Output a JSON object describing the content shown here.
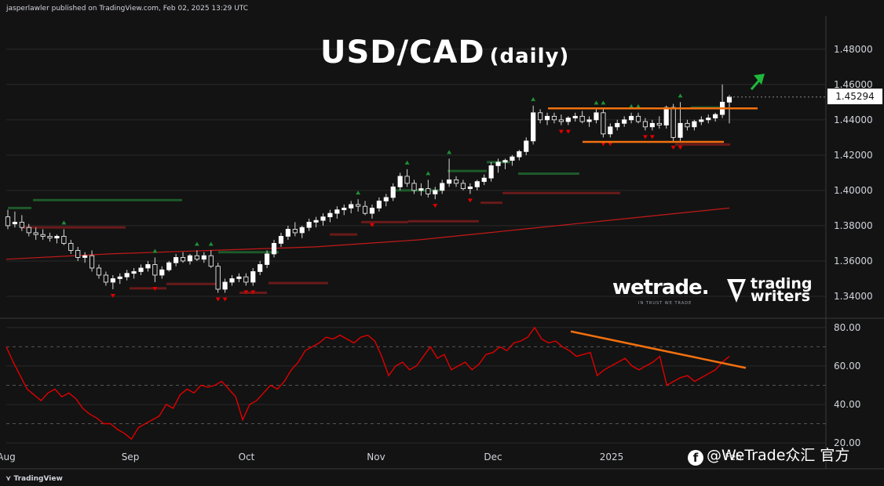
{
  "header": {
    "publisher_text": "jasperlawler published on TradingView.com, Feb 02, 2025 13:29 UTC"
  },
  "title": {
    "main": "USD/CAD",
    "sub": "(daily)"
  },
  "price_tag": "1.45294",
  "brands": {
    "wetrade": "wetrade.",
    "wetrade_tagline": "IN TRUST WE TRADE",
    "trading_writers_line1": "trading",
    "trading_writers_line2": "writers"
  },
  "footer": {
    "tradingview": "TradingView"
  },
  "watermark": {
    "icon": "facebook-like-icon",
    "text": "@WeTrade众汇 官方"
  },
  "colors": {
    "background": "#131313",
    "up_candle": "#ffffff",
    "down_candle": "#ffffff",
    "up_arrow": "#1f8f35",
    "down_arrow": "#e00000",
    "support_green": "#1d5a2a",
    "resistance_red": "#6a1a1a",
    "moving_average": "#c41919",
    "rsi_line": "#e00000",
    "trendline": "#f2700f",
    "grid": "#2a2a2a"
  },
  "chart_data": [
    {
      "type": "candlestick",
      "title": "USD/CAD",
      "subtitle": "(daily)",
      "y_ticks": [
        "1.48000",
        "1.46000",
        "1.44000",
        "1.42000",
        "1.40000",
        "1.38000",
        "1.36000",
        "1.34000"
      ],
      "ylim": [
        1.328,
        1.499
      ],
      "x_ticks": [
        "Aug",
        "Sep",
        "Oct",
        "Nov",
        "Dec",
        "2025",
        "Feb"
      ],
      "last_price": 1.45294,
      "candles": [
        [
          1.385,
          1.389,
          1.378,
          1.38
        ],
        [
          1.381,
          1.388,
          1.379,
          1.382
        ],
        [
          1.382,
          1.386,
          1.377,
          1.379
        ],
        [
          1.379,
          1.381,
          1.374,
          1.376
        ],
        [
          1.376,
          1.379,
          1.372,
          1.375
        ],
        [
          1.375,
          1.378,
          1.372,
          1.374
        ],
        [
          1.374,
          1.376,
          1.371,
          1.373
        ],
        [
          1.373,
          1.375,
          1.37,
          1.374
        ],
        [
          1.374,
          1.378,
          1.369,
          1.37
        ],
        [
          1.37,
          1.372,
          1.364,
          1.366
        ],
        [
          1.366,
          1.368,
          1.36,
          1.362
        ],
        [
          1.362,
          1.365,
          1.359,
          1.363
        ],
        [
          1.363,
          1.366,
          1.354,
          1.356
        ],
        [
          1.356,
          1.358,
          1.35,
          1.352
        ],
        [
          1.352,
          1.354,
          1.346,
          1.348
        ],
        [
          1.348,
          1.352,
          1.344,
          1.35
        ],
        [
          1.35,
          1.353,
          1.347,
          1.351
        ],
        [
          1.351,
          1.355,
          1.349,
          1.353
        ],
        [
          1.353,
          1.356,
          1.35,
          1.354
        ],
        [
          1.354,
          1.358,
          1.352,
          1.356
        ],
        [
          1.356,
          1.36,
          1.354,
          1.358
        ],
        [
          1.358,
          1.362,
          1.348,
          1.352
        ],
        [
          1.352,
          1.357,
          1.35,
          1.355
        ],
        [
          1.355,
          1.36,
          1.354,
          1.359
        ],
        [
          1.359,
          1.364,
          1.357,
          1.362
        ],
        [
          1.362,
          1.365,
          1.359,
          1.36
        ],
        [
          1.36,
          1.364,
          1.358,
          1.363
        ],
        [
          1.363,
          1.366,
          1.36,
          1.361
        ],
        [
          1.361,
          1.365,
          1.359,
          1.363
        ],
        [
          1.363,
          1.366,
          1.356,
          1.357
        ],
        [
          1.357,
          1.359,
          1.342,
          1.344
        ],
        [
          1.344,
          1.35,
          1.342,
          1.348
        ],
        [
          1.348,
          1.352,
          1.346,
          1.35
        ],
        [
          1.35,
          1.353,
          1.348,
          1.351
        ],
        [
          1.351,
          1.353,
          1.346,
          1.348
        ],
        [
          1.348,
          1.356,
          1.346,
          1.354
        ],
        [
          1.354,
          1.36,
          1.352,
          1.358
        ],
        [
          1.358,
          1.366,
          1.356,
          1.364
        ],
        [
          1.364,
          1.372,
          1.362,
          1.37
        ],
        [
          1.37,
          1.376,
          1.368,
          1.374
        ],
        [
          1.374,
          1.38,
          1.372,
          1.378
        ],
        [
          1.378,
          1.382,
          1.374,
          1.376
        ],
        [
          1.376,
          1.38,
          1.373,
          1.379
        ],
        [
          1.379,
          1.384,
          1.377,
          1.382
        ],
        [
          1.382,
          1.385,
          1.379,
          1.383
        ],
        [
          1.383,
          1.387,
          1.38,
          1.385
        ],
        [
          1.385,
          1.389,
          1.382,
          1.387
        ],
        [
          1.387,
          1.391,
          1.384,
          1.389
        ],
        [
          1.389,
          1.392,
          1.386,
          1.39
        ],
        [
          1.39,
          1.394,
          1.387,
          1.392
        ],
        [
          1.392,
          1.395,
          1.388,
          1.391
        ],
        [
          1.391,
          1.394,
          1.386,
          1.387
        ],
        [
          1.387,
          1.392,
          1.384,
          1.39
        ],
        [
          1.39,
          1.396,
          1.388,
          1.394
        ],
        [
          1.394,
          1.398,
          1.391,
          1.396
        ],
        [
          1.396,
          1.404,
          1.394,
          1.402
        ],
        [
          1.402,
          1.41,
          1.4,
          1.408
        ],
        [
          1.408,
          1.412,
          1.402,
          1.404
        ],
        [
          1.404,
          1.406,
          1.398,
          1.4
        ],
        [
          1.4,
          1.404,
          1.397,
          1.401
        ],
        [
          1.401,
          1.406,
          1.396,
          1.398
        ],
        [
          1.398,
          1.402,
          1.395,
          1.4
        ],
        [
          1.4,
          1.406,
          1.398,
          1.404
        ],
        [
          1.404,
          1.418,
          1.402,
          1.406
        ],
        [
          1.406,
          1.408,
          1.402,
          1.404
        ],
        [
          1.404,
          1.406,
          1.4,
          1.401
        ],
        [
          1.401,
          1.404,
          1.398,
          1.402
        ],
        [
          1.402,
          1.406,
          1.4,
          1.405
        ],
        [
          1.405,
          1.409,
          1.403,
          1.407
        ],
        [
          1.407,
          1.416,
          1.405,
          1.414
        ],
        [
          1.414,
          1.418,
          1.41,
          1.416
        ],
        [
          1.416,
          1.418,
          1.412,
          1.417
        ],
        [
          1.417,
          1.42,
          1.414,
          1.419
        ],
        [
          1.419,
          1.423,
          1.417,
          1.422
        ],
        [
          1.422,
          1.43,
          1.42,
          1.428
        ],
        [
          1.428,
          1.448,
          1.426,
          1.444
        ],
        [
          1.444,
          1.446,
          1.438,
          1.44
        ],
        [
          1.44,
          1.444,
          1.437,
          1.442
        ],
        [
          1.442,
          1.444,
          1.438,
          1.44
        ],
        [
          1.44,
          1.443,
          1.437,
          1.439
        ],
        [
          1.439,
          1.442,
          1.437,
          1.441
        ],
        [
          1.441,
          1.444,
          1.439,
          1.442
        ],
        [
          1.442,
          1.445,
          1.438,
          1.439
        ],
        [
          1.439,
          1.442,
          1.436,
          1.44
        ],
        [
          1.44,
          1.446,
          1.438,
          1.444
        ],
        [
          1.444,
          1.446,
          1.43,
          1.432
        ],
        [
          1.432,
          1.438,
          1.43,
          1.436
        ],
        [
          1.436,
          1.44,
          1.434,
          1.438
        ],
        [
          1.438,
          1.442,
          1.436,
          1.44
        ],
        [
          1.44,
          1.444,
          1.438,
          1.442
        ],
        [
          1.442,
          1.444,
          1.438,
          1.439
        ],
        [
          1.439,
          1.441,
          1.434,
          1.436
        ],
        [
          1.436,
          1.44,
          1.434,
          1.438
        ],
        [
          1.438,
          1.442,
          1.435,
          1.437
        ],
        [
          1.437,
          1.448,
          1.435,
          1.447
        ],
        [
          1.447,
          1.449,
          1.428,
          1.43
        ],
        [
          1.43,
          1.45,
          1.428,
          1.438
        ],
        [
          1.438,
          1.44,
          1.434,
          1.436
        ],
        [
          1.436,
          1.44,
          1.434,
          1.439
        ],
        [
          1.439,
          1.442,
          1.437,
          1.44
        ],
        [
          1.44,
          1.443,
          1.438,
          1.441
        ],
        [
          1.441,
          1.444,
          1.439,
          1.443
        ],
        [
          1.443,
          1.46,
          1.441,
          1.45
        ],
        [
          1.45,
          1.454,
          1.438,
          1.4529
        ]
      ],
      "moving_average_points": [
        1.361,
        1.364,
        1.366,
        1.368,
        1.372,
        1.378,
        1.384,
        1.39
      ],
      "horizontal_levels": [
        {
          "name": "resistance",
          "value": 1.4465
        },
        {
          "name": "support",
          "value": 1.4275
        }
      ],
      "trend_arrow": "up"
    },
    {
      "type": "line",
      "y_ticks": [
        "80.00",
        "60.00",
        "40.00",
        "20.00"
      ],
      "ylim": [
        18,
        84
      ],
      "reference_levels": [
        70,
        50,
        30
      ],
      "series": [
        {
          "values": [
            70,
            62,
            55,
            48,
            45,
            42,
            46,
            48,
            44,
            46,
            43,
            38,
            35,
            33,
            30,
            30,
            27,
            25,
            22,
            28,
            30,
            32,
            34,
            40,
            38,
            45,
            48,
            46,
            50,
            49,
            50,
            52,
            48,
            44,
            32,
            40,
            42,
            46,
            50,
            48,
            52,
            58,
            62,
            68,
            70,
            72,
            75,
            74,
            76,
            74,
            72,
            75,
            76,
            73,
            65,
            55,
            60,
            62,
            58,
            60,
            65,
            70,
            64,
            66,
            58,
            60,
            62,
            58,
            61,
            66,
            67,
            70,
            68,
            72,
            73,
            75,
            80,
            74,
            72,
            73,
            70,
            68,
            65,
            66,
            67,
            55,
            58,
            60,
            62,
            64,
            60,
            58,
            60,
            62,
            65,
            50,
            52,
            54,
            55,
            52,
            54,
            56,
            58,
            62,
            65
          ]
        }
      ],
      "trendline": {
        "from": {
          "index": 80,
          "value": 75
        },
        "to": {
          "index": 104,
          "value": 59
        }
      }
    }
  ]
}
